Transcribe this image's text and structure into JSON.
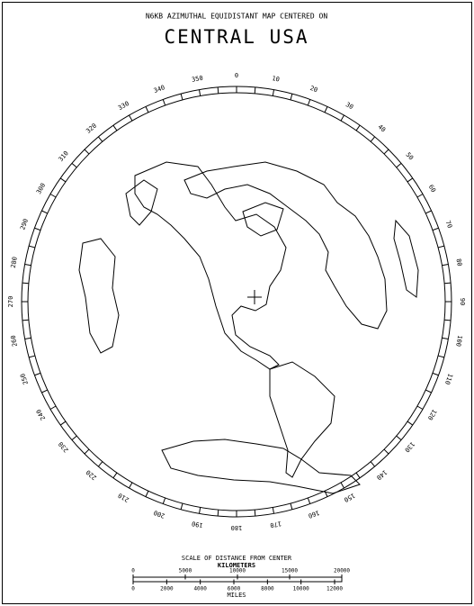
{
  "header": {
    "title": "N6KB AZIMUTHAL EQUIDISTANT MAP CENTERED ON",
    "subtitle": "CENTRAL USA"
  },
  "azimuth_labels": [
    0,
    10,
    20,
    30,
    40,
    50,
    60,
    70,
    80,
    90,
    100,
    110,
    120,
    130,
    140,
    150,
    160,
    170,
    180,
    190,
    200,
    210,
    220,
    230,
    240,
    250,
    260,
    270,
    280,
    290,
    300,
    310,
    320,
    330,
    340,
    350
  ],
  "scale": {
    "title": "SCALE OF DISTANCE FROM CENTER",
    "km_label": "KILOMETERS",
    "km_ticks": [
      0,
      5000,
      10000,
      15000,
      20000
    ],
    "miles_label": "MILES",
    "mile_ticks": [
      0,
      2000,
      4000,
      6000,
      8000,
      10000,
      12000
    ]
  }
}
